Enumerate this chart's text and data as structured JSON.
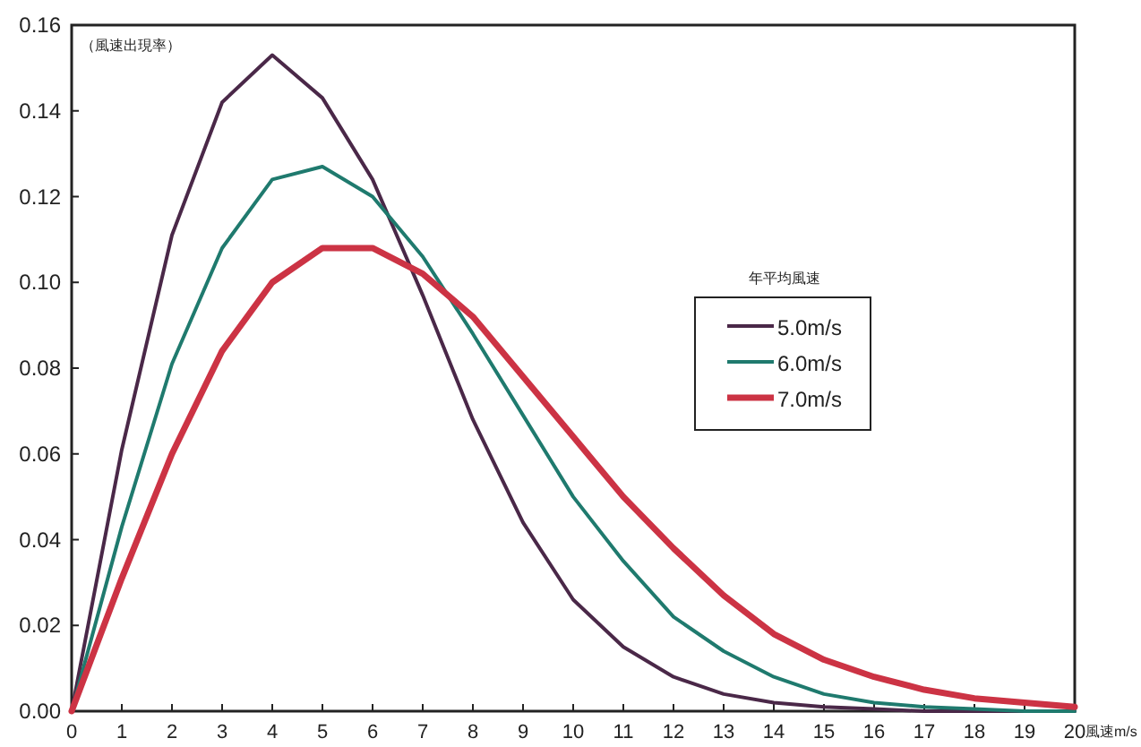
{
  "chart_data": {
    "type": "line",
    "ylabel": "（風速出現率）",
    "xlabel": "風速m/s",
    "legend_title": "年平均風速",
    "legend": "right",
    "x": [
      0,
      1,
      2,
      3,
      4,
      5,
      6,
      7,
      8,
      9,
      10,
      11,
      12,
      13,
      14,
      15,
      16,
      17,
      18,
      19,
      20
    ],
    "series": [
      {
        "name": "5.0m/s",
        "color": "#4a2848",
        "values": [
          0,
          0.061,
          0.111,
          0.142,
          0.153,
          0.143,
          0.124,
          0.097,
          0.068,
          0.044,
          0.026,
          0.015,
          0.008,
          0.004,
          0.002,
          0.001,
          0.0005,
          0,
          0,
          0,
          0
        ]
      },
      {
        "name": "6.0m/s",
        "color": "#1f7a6e",
        "values": [
          0,
          0.043,
          0.081,
          0.108,
          0.124,
          0.127,
          0.12,
          0.106,
          0.088,
          0.069,
          0.05,
          0.035,
          0.022,
          0.014,
          0.008,
          0.004,
          0.002,
          0.001,
          0.0005,
          0,
          0
        ]
      },
      {
        "name": "7.0m/s",
        "color": "#cc3344",
        "values": [
          0,
          0.031,
          0.06,
          0.084,
          0.1,
          0.108,
          0.108,
          0.102,
          0.092,
          0.078,
          0.064,
          0.05,
          0.038,
          0.027,
          0.018,
          0.012,
          0.008,
          0.005,
          0.003,
          0.002,
          0.001
        ]
      }
    ],
    "xlim": [
      0,
      20
    ],
    "xticks": [
      0,
      1,
      2,
      3,
      4,
      5,
      6,
      7,
      8,
      9,
      10,
      11,
      12,
      13,
      14,
      15,
      16,
      17,
      18,
      19,
      20
    ],
    "ylim": [
      0,
      0.16
    ],
    "yticks": [
      {
        "value": 0,
        "label": "0.00"
      },
      {
        "value": 0.02,
        "label": "0.02"
      },
      {
        "value": 0.04,
        "label": "0.04"
      },
      {
        "value": 0.06,
        "label": "0.06"
      },
      {
        "value": 0.08,
        "label": "0.08"
      },
      {
        "value": 0.1,
        "label": "0.10"
      },
      {
        "value": 0.12,
        "label": "0.12"
      },
      {
        "value": 0.14,
        "label": "0.14"
      },
      {
        "value": 0.16,
        "label": "0.16"
      }
    ]
  }
}
